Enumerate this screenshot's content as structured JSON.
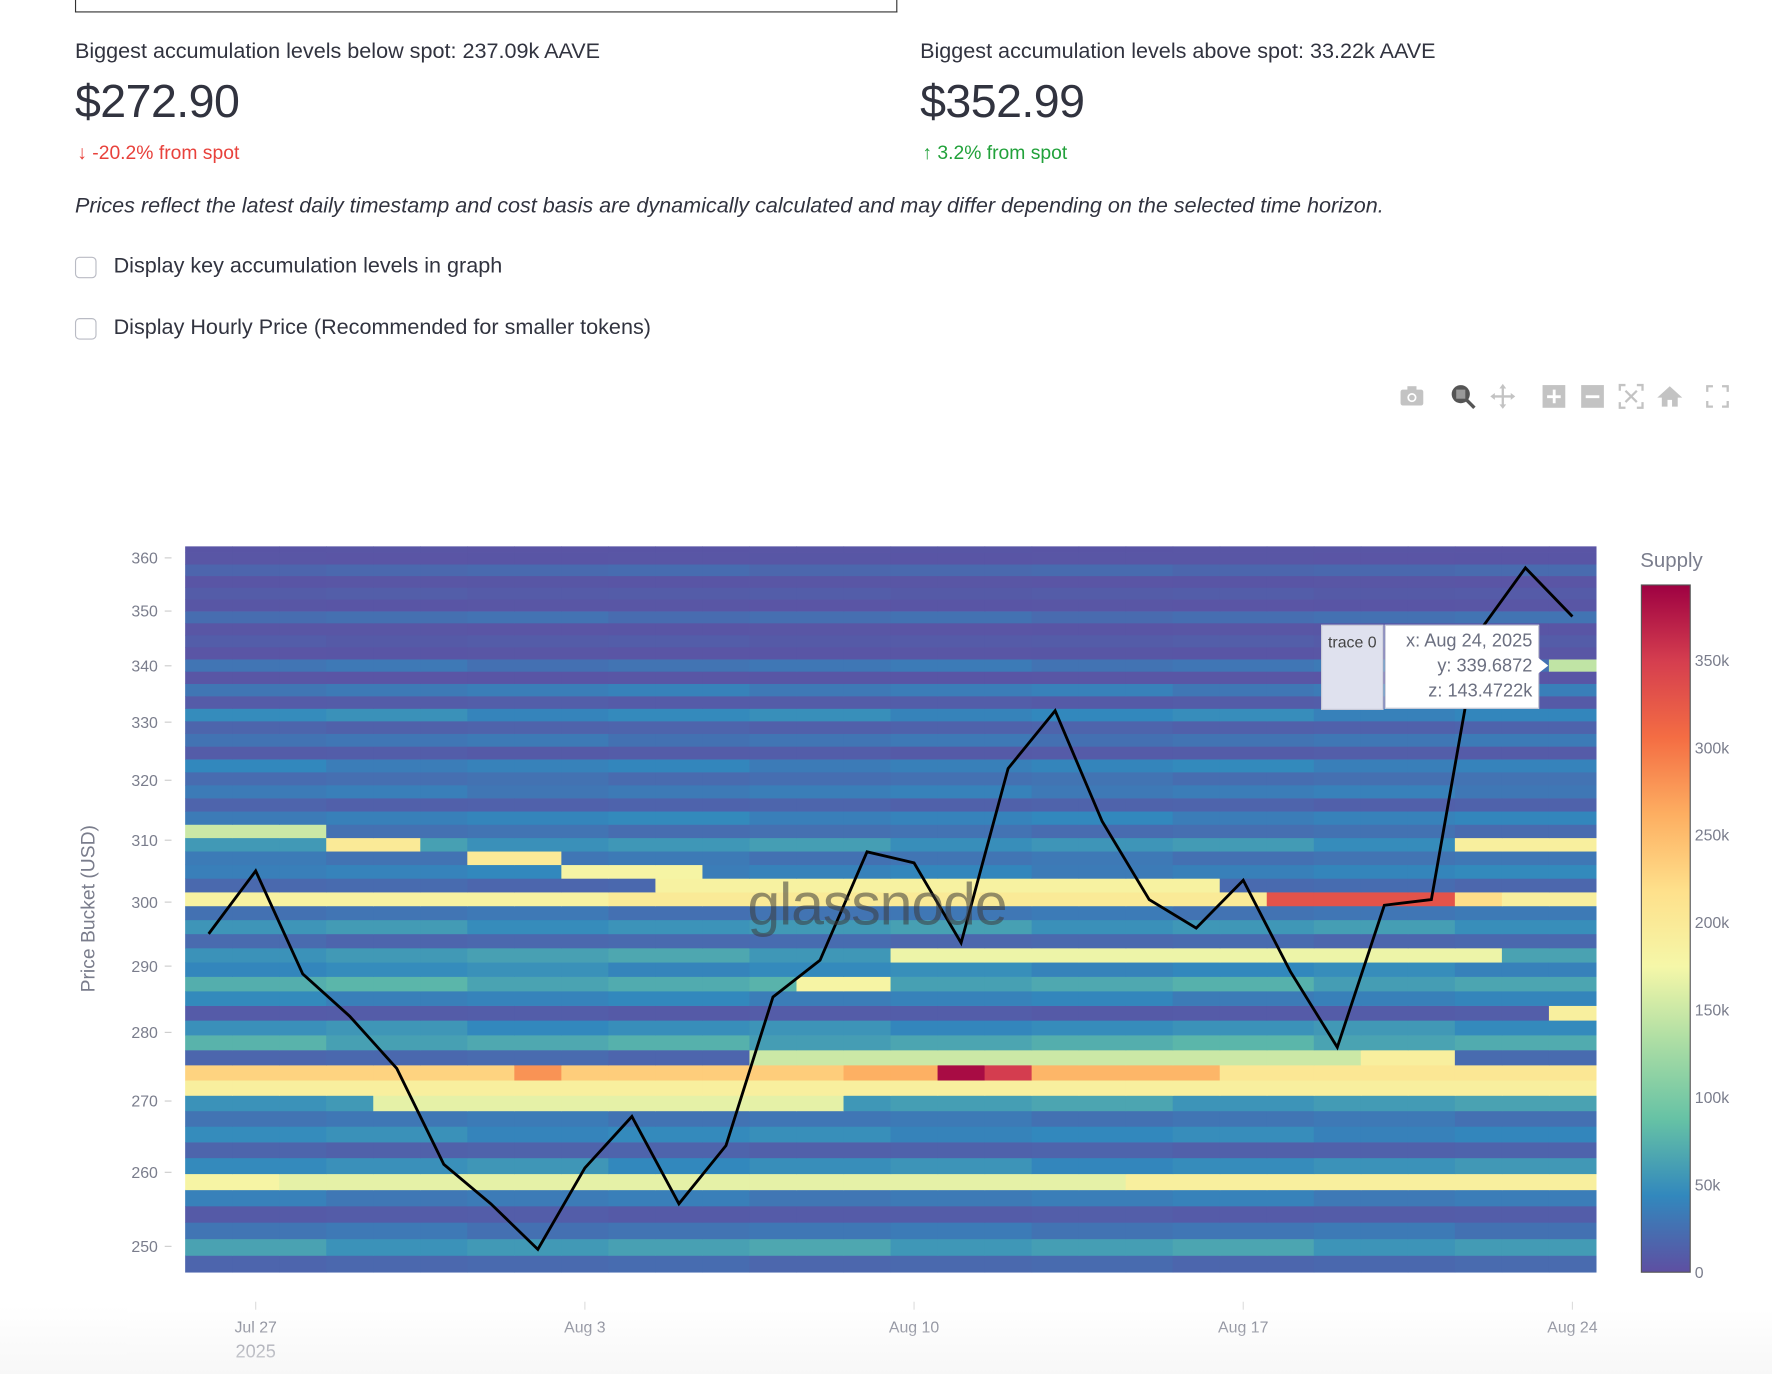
{
  "levels": {
    "below": {
      "title": "Biggest accumulation levels below spot: 237.09k AAVE",
      "price": "$272.90",
      "delta": "-20.2% from spot",
      "arrow": "↓"
    },
    "above": {
      "title": "Biggest accumulation levels above spot: 33.22k AAVE",
      "price": "$352.99",
      "delta": "3.2% from spot",
      "arrow": "↑"
    }
  },
  "note": "Prices reflect the latest daily timestamp and cost basis are dynamically calculated and may differ depending on the selected time horizon.",
  "checkboxes": [
    {
      "label": "Display key accumulation levels in graph",
      "checked": false
    },
    {
      "label": "Display Hourly Price (Recommended for smaller tokens)",
      "checked": false
    }
  ],
  "toolbar": [
    "camera-icon",
    "zoom-icon",
    "pan-icon",
    "zoom-in-icon",
    "zoom-out-icon",
    "autoscale-icon",
    "reset-axes-home-icon",
    "fullscreen-icon"
  ],
  "watermark": "glassnode",
  "tooltip": {
    "name": "trace 0",
    "x": "x: Aug 24, 2025",
    "y": "y: 339.6872",
    "z": "z: 143.4722k"
  },
  "colors": {
    "down": "#e8413b",
    "up": "#21a13a",
    "line": "#000000"
  },
  "chart_data": {
    "type": "heatmap",
    "ylabel": "Price Bucket (USD)",
    "ylog": true,
    "ylim": [
      246.6,
      362.2
    ],
    "yticks": [
      250,
      260,
      270,
      280,
      290,
      300,
      310,
      320,
      330,
      340,
      350,
      360
    ],
    "xticks": [
      {
        "date": "Jul 27",
        "label": "Jul 27",
        "sub": "2025"
      },
      {
        "date": "Aug 3",
        "label": "Aug 3",
        "sub": ""
      },
      {
        "date": "Aug 10",
        "label": "Aug 10",
        "sub": ""
      },
      {
        "date": "Aug 17",
        "label": "Aug 17",
        "sub": ""
      },
      {
        "date": "Aug 24",
        "label": "Aug 24",
        "sub": ""
      }
    ],
    "dates": [
      "Jul 26",
      "Jul 27",
      "Jul 28",
      "Jul 29",
      "Jul 30",
      "Jul 31",
      "Aug 1",
      "Aug 2",
      "Aug 3",
      "Aug 4",
      "Aug 5",
      "Aug 6",
      "Aug 7",
      "Aug 8",
      "Aug 9",
      "Aug 10",
      "Aug 11",
      "Aug 12",
      "Aug 13",
      "Aug 14",
      "Aug 15",
      "Aug 16",
      "Aug 17",
      "Aug 18",
      "Aug 19",
      "Aug 20",
      "Aug 21",
      "Aug 22",
      "Aug 23",
      "Aug 24"
    ],
    "price_line": [
      295,
      305,
      288.8,
      282.4,
      274.7,
      261.1,
      255.7,
      249.6,
      260.6,
      267.8,
      255.7,
      263.7,
      285.3,
      290.9,
      308.1,
      306.3,
      293.6,
      322.0,
      332.0,
      313.1,
      300.4,
      295.9,
      303.5,
      289.2,
      277.8,
      299.5,
      300.4,
      346.0,
      358.1,
      349.0
    ],
    "bucket_start": 246.6,
    "bucket_size": 2.2,
    "bucket_base_supply": [
      20000,
      60000,
      30000,
      10000,
      35000,
      40000,
      50000,
      15000,
      45000,
      30000,
      60000,
      80000,
      100000,
      20000,
      70000,
      50000,
      10000,
      40000,
      70000,
      45000,
      60000,
      20000,
      55000,
      30000,
      170000,
      20000,
      40000,
      30000,
      55000,
      25000,
      40000,
      15000,
      35000,
      25000,
      40000,
      10000,
      30000,
      15000,
      45000,
      10000,
      35000,
      5000,
      30000,
      5000,
      10000,
      5000,
      25000,
      5000,
      10000,
      5000,
      20000,
      5000,
      5000
    ],
    "highlights": [
      {
        "price": 300.5,
        "from": "Jul 26",
        "to": "Aug 3",
        "supply": 185000
      },
      {
        "price": 300.5,
        "from": "Aug 4",
        "to": "Aug 17",
        "supply": 200000
      },
      {
        "price": 300.5,
        "from": "Aug 18",
        "to": "Aug 21",
        "supply": 330000
      },
      {
        "price": 300.5,
        "from": "Aug 22",
        "to": "Aug 22",
        "supply": 220000
      },
      {
        "price": 300.5,
        "from": "Aug 23",
        "to": "Aug 24",
        "supply": 190000
      },
      {
        "price": 274.1,
        "from": "Jul 26",
        "to": "Aug 1",
        "supply": 230000
      },
      {
        "price": 274.1,
        "from": "Aug 2",
        "to": "Aug 2",
        "supply": 280000
      },
      {
        "price": 274.1,
        "from": "Aug 3",
        "to": "Aug 8",
        "supply": 235000
      },
      {
        "price": 274.1,
        "from": "Aug 9",
        "to": "Aug 10",
        "supply": 260000
      },
      {
        "price": 274.1,
        "from": "Aug 11",
        "to": "Aug 11",
        "supply": 385000
      },
      {
        "price": 274.1,
        "from": "Aug 12",
        "to": "Aug 12",
        "supply": 350000
      },
      {
        "price": 274.1,
        "from": "Aug 13",
        "to": "Aug 16",
        "supply": 255000
      },
      {
        "price": 274.1,
        "from": "Aug 17",
        "to": "Aug 24",
        "supply": 205000
      },
      {
        "price": 271.9,
        "from": "Jul 26",
        "to": "Aug 24",
        "supply": 190000
      },
      {
        "price": 258.7,
        "from": "Jul 26",
        "to": "Jul 27",
        "supply": 180000
      },
      {
        "price": 258.7,
        "from": "Jul 28",
        "to": "Aug 14",
        "supply": 165000
      },
      {
        "price": 258.7,
        "from": "Aug 15",
        "to": "Aug 24",
        "supply": 190000
      },
      {
        "price": 311.5,
        "from": "Jul 26",
        "to": "Jul 28",
        "supply": 150000
      },
      {
        "price": 309.3,
        "from": "Jul 29",
        "to": "Jul 30",
        "supply": 200000
      },
      {
        "price": 307.1,
        "from": "Aug 1",
        "to": "Aug 2",
        "supply": 200000
      },
      {
        "price": 304.9,
        "from": "Aug 3",
        "to": "Aug 5",
        "supply": 180000
      },
      {
        "price": 302.7,
        "from": "Aug 5",
        "to": "Aug 16",
        "supply": 185000
      },
      {
        "price": 291.7,
        "from": "Aug 10",
        "to": "Aug 22",
        "supply": 170000
      },
      {
        "price": 287.3,
        "from": "Aug 8",
        "to": "Aug 9",
        "supply": 180000
      },
      {
        "price": 276.3,
        "from": "Aug 7",
        "to": "Aug 19",
        "supply": 150000
      },
      {
        "price": 276.3,
        "from": "Aug 20",
        "to": "Aug 21",
        "supply": 190000
      },
      {
        "price": 269.7,
        "from": "Jul 30",
        "to": "Aug 8",
        "supply": 165000
      },
      {
        "price": 282.9,
        "from": "Aug 24",
        "to": "Aug 24",
        "supply": 190000
      },
      {
        "price": 309.3,
        "from": "Aug 22",
        "to": "Aug 24",
        "supply": 190000
      },
      {
        "price": 340.1,
        "from": "Aug 24",
        "to": "Aug 24",
        "supply": 143472
      }
    ],
    "colorbar": {
      "title": "Supply",
      "max": 393000,
      "ticks": [
        {
          "v": 0,
          "label": "0"
        },
        {
          "v": 50000,
          "label": "50k"
        },
        {
          "v": 100000,
          "label": "100k"
        },
        {
          "v": 150000,
          "label": "150k"
        },
        {
          "v": 200000,
          "label": "200k"
        },
        {
          "v": 250000,
          "label": "250k"
        },
        {
          "v": 300000,
          "label": "300k"
        },
        {
          "v": 350000,
          "label": "350k"
        }
      ]
    },
    "colorscale": [
      "#5e4fa2",
      "#3288bd",
      "#66c2a5",
      "#abdda4",
      "#f5f7a8",
      "#fee08b",
      "#fdae61",
      "#f46d43",
      "#d53e4f",
      "#9e0142"
    ]
  }
}
